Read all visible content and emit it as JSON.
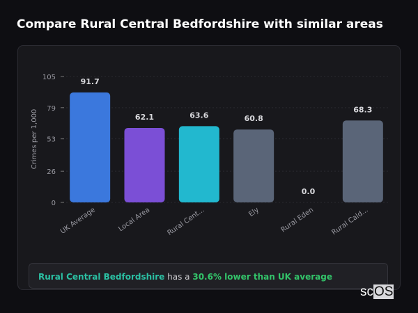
{
  "title": "Compare Rural Central Bedfordshire with similar areas",
  "chart_data": {
    "type": "bar",
    "categories": [
      "UK Average",
      "Local Area",
      "Rural Cent...",
      "Ely",
      "Rural Eden",
      "Rural Cald..."
    ],
    "values": [
      91.7,
      62.1,
      63.6,
      60.8,
      0.0,
      68.3
    ],
    "value_labels": [
      "91.7",
      "62.1",
      "63.6",
      "60.8",
      "0.0",
      "68.3"
    ],
    "colors": [
      "#3b78dd",
      "#7b4fd6",
      "#22b8cf",
      "#5a6578",
      "#5a6578",
      "#5a6578"
    ],
    "ylabel": "Crimes per 1,000",
    "ylim": [
      0,
      105
    ],
    "yticks": [
      0,
      26,
      53,
      79,
      105
    ],
    "grid": true
  },
  "note": {
    "area": "Rural Central Bedfordshire",
    "middle": " has a ",
    "comparison": "30.6% lower than UK average"
  },
  "logo": {
    "prefix": "sc",
    "suffix": "OS"
  }
}
